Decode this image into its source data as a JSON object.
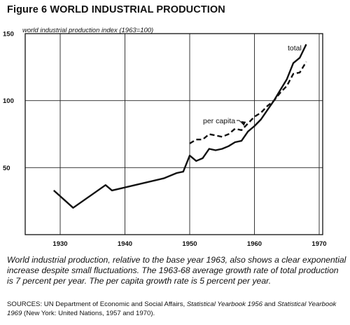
{
  "figure": {
    "title": "Figure 6 WORLD INDUSTRIAL PRODUCTION",
    "caption": "World industrial production, relative to the base year 1963, also shows a clear exponential increase despite small fluctuations. The 1963-68 average growth rate of total production is 7 percent per year. The per capita growth rate is 5 percent per year.",
    "sources": {
      "prefix": "SOURCES: UN Department of Economic and Social Affairs, ",
      "book1": "Statistical Yearbook 1956",
      "mid": " and ",
      "book2": "Statistical Yearbook 1969",
      "suffix": " (New York: United Nations, 1957 and 1970)."
    }
  },
  "chart_data": {
    "type": "line",
    "ylabel": "world industrial production index (1963=100)",
    "xlabel": "",
    "xlim": [
      1926,
      1970
    ],
    "ylim": [
      0,
      150
    ],
    "xticks": [
      1930,
      1940,
      1950,
      1960,
      1970
    ],
    "yticks": [
      50,
      100,
      150
    ],
    "grid": true,
    "series": [
      {
        "name": "total",
        "style": "solid",
        "points": [
          [
            1929,
            33
          ],
          [
            1932,
            20
          ],
          [
            1937,
            37
          ],
          [
            1938,
            33
          ],
          [
            1946,
            42
          ],
          [
            1948,
            46
          ],
          [
            1949,
            47
          ],
          [
            1950,
            59
          ],
          [
            1951,
            55
          ],
          [
            1952,
            57
          ],
          [
            1953,
            64
          ],
          [
            1954,
            63
          ],
          [
            1955,
            64
          ],
          [
            1956,
            66
          ],
          [
            1957,
            69
          ],
          [
            1958,
            70
          ],
          [
            1959,
            77
          ],
          [
            1960,
            81
          ],
          [
            1961,
            86
          ],
          [
            1962,
            93
          ],
          [
            1963,
            100
          ],
          [
            1964,
            108
          ],
          [
            1965,
            116
          ],
          [
            1966,
            128
          ],
          [
            1967,
            132
          ],
          [
            1968,
            142
          ]
        ]
      },
      {
        "name": "per capita",
        "style": "dashed",
        "points": [
          [
            1950,
            68
          ],
          [
            1951,
            71
          ],
          [
            1952,
            71
          ],
          [
            1953,
            75
          ],
          [
            1954,
            74
          ],
          [
            1955,
            73
          ],
          [
            1956,
            75
          ],
          [
            1957,
            79
          ],
          [
            1958,
            78
          ],
          [
            1959,
            83
          ],
          [
            1960,
            88
          ],
          [
            1961,
            91
          ],
          [
            1962,
            96
          ],
          [
            1963,
            100
          ],
          [
            1964,
            106
          ],
          [
            1965,
            111
          ],
          [
            1966,
            120
          ],
          [
            1967,
            121
          ],
          [
            1968,
            129
          ]
        ]
      }
    ]
  }
}
